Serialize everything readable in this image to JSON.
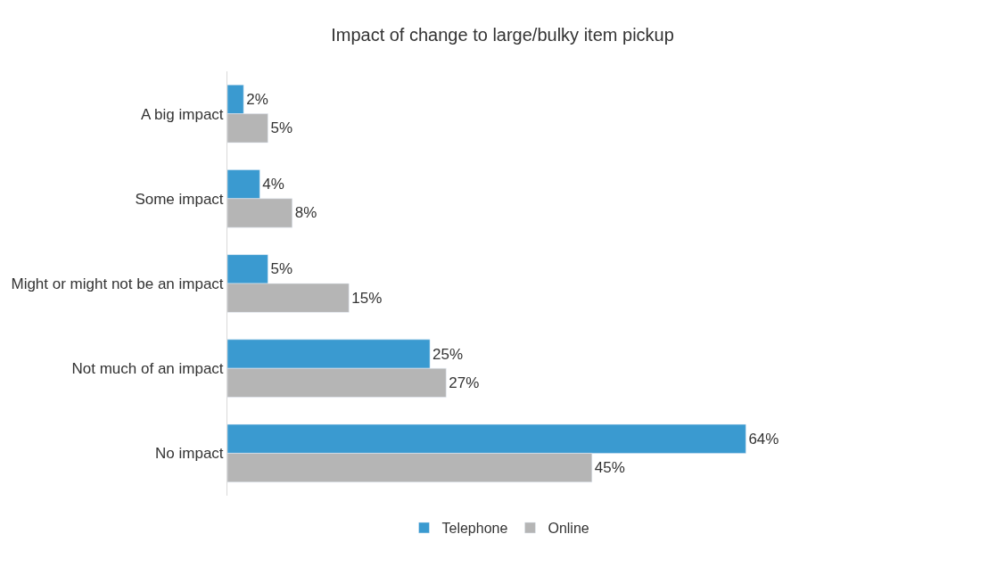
{
  "chart_data": {
    "type": "bar",
    "orientation": "horizontal",
    "title": "Impact of change to large/bulky item pickup",
    "categories": [
      "A big impact",
      "Some impact",
      "Might or might not be an impact",
      "Not much of an impact",
      "No impact"
    ],
    "series": [
      {
        "name": "Telephone",
        "color": "#3a9ad0",
        "values": [
          2,
          4,
          5,
          25,
          64
        ],
        "value_labels": [
          "2%",
          "4%",
          "5%",
          "25%",
          "64%"
        ]
      },
      {
        "name": "Online",
        "color": "#b5b5b5",
        "values": [
          5,
          8,
          15,
          27,
          45
        ],
        "value_labels": [
          "5%",
          "8%",
          "15%",
          "27%",
          "45%"
        ]
      }
    ],
    "tick_labels": "y",
    "legend": "bottom"
  }
}
